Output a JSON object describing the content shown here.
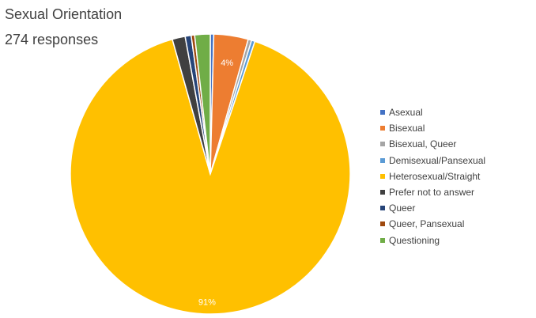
{
  "title": "Sexual Orientation",
  "subtitle": "274 responses",
  "chart_data": {
    "type": "pie",
    "title": "Sexual Orientation",
    "subtitle": "274 responses",
    "legend_position": "right",
    "slices": [
      {
        "label": "Asexual",
        "value": 0.4,
        "color": "#4472c4",
        "data_label": ""
      },
      {
        "label": "Bisexual",
        "value": 4.0,
        "color": "#ed7d31",
        "data_label": "4%"
      },
      {
        "label": "Bisexual, Queer",
        "value": 0.4,
        "color": "#a5a5a5",
        "data_label": ""
      },
      {
        "label": "Demisexual/Pansexual",
        "value": 0.4,
        "color": "#5b9bd5",
        "data_label": ""
      },
      {
        "label": "Heterosexual/Straight",
        "value": 91.0,
        "color": "#ffc000",
        "data_label": "91%"
      },
      {
        "label": "Prefer not to answer",
        "value": 1.5,
        "color": "#404040",
        "data_label": ""
      },
      {
        "label": "Queer",
        "value": 0.7,
        "color": "#264478",
        "data_label": ""
      },
      {
        "label": "Queer, Pansexual",
        "value": 0.4,
        "color": "#9e480e",
        "data_label": ""
      },
      {
        "label": "Questioning",
        "value": 1.8,
        "color": "#70ad47",
        "data_label": ""
      }
    ]
  }
}
